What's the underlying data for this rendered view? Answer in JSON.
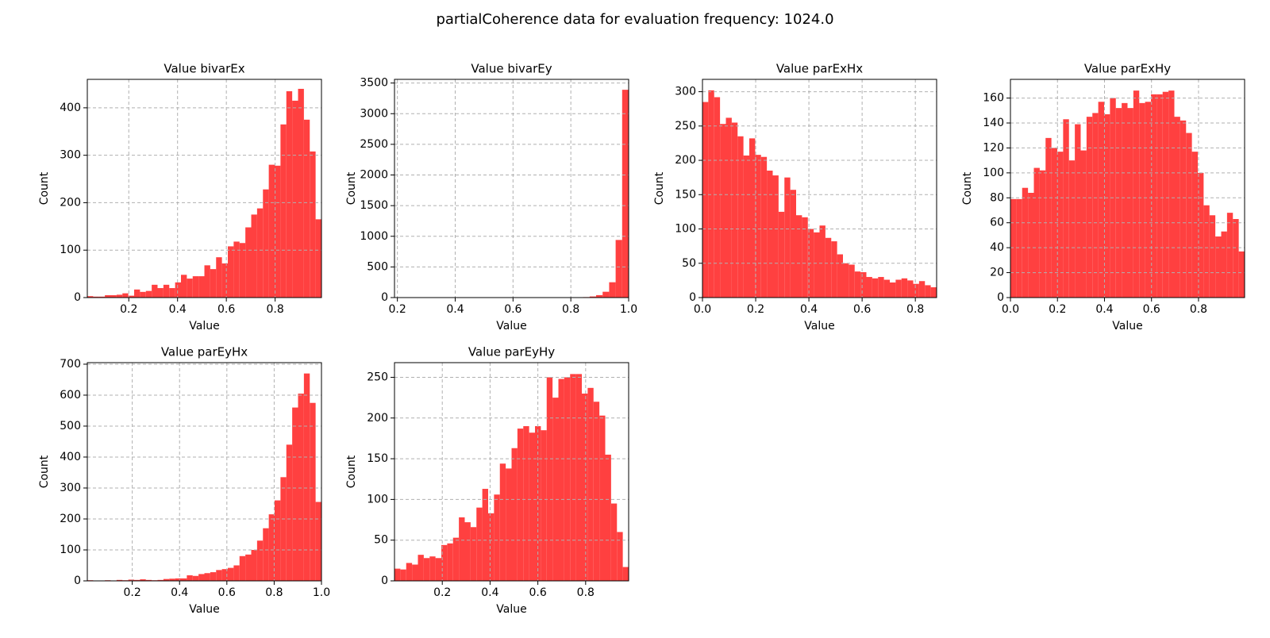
{
  "title": "partialCoherence data for evaluation frequency: 1024.0",
  "chart_data": [
    {
      "type": "histogram",
      "title": "Value bivarEx",
      "xlabel": "Value",
      "ylabel": "Count",
      "color": "#ff4040",
      "grid": true,
      "bins": [
        0.03,
        0.054,
        0.078,
        0.102,
        0.126,
        0.15,
        0.174,
        0.198,
        0.222,
        0.246,
        0.27,
        0.294,
        0.318,
        0.342,
        0.366,
        0.39,
        0.414,
        0.438,
        0.462,
        0.486,
        0.51,
        0.534,
        0.558,
        0.582,
        0.606,
        0.63,
        0.654,
        0.678,
        0.702,
        0.726,
        0.75,
        0.774,
        0.798,
        0.822,
        0.846,
        0.87,
        0.894,
        0.918,
        0.942,
        0.966,
        0.99
      ],
      "values": [
        3,
        2,
        2,
        5,
        5,
        6,
        9,
        4,
        17,
        12,
        14,
        27,
        20,
        27,
        20,
        32,
        48,
        40,
        45,
        45,
        68,
        60,
        85,
        72,
        108,
        118,
        115,
        148,
        175,
        188,
        228,
        280,
        278,
        365,
        435,
        415,
        440,
        375,
        308,
        165
      ],
      "xlim": [
        0.03,
        0.99
      ],
      "ylim": [
        0,
        460
      ],
      "xticks": [
        0.2,
        0.4,
        0.6,
        0.8
      ],
      "yticks": [
        0,
        100,
        200,
        300,
        400
      ]
    },
    {
      "type": "histogram",
      "title": "Value bivarEy",
      "xlabel": "Value",
      "ylabel": "Count",
      "color": "#ff4040",
      "grid": true,
      "bins": [
        0.19,
        0.2125,
        0.235,
        0.2575,
        0.28,
        0.3025,
        0.325,
        0.3475,
        0.37,
        0.3925,
        0.415,
        0.4375,
        0.46,
        0.4825,
        0.505,
        0.5275,
        0.55,
        0.5725,
        0.595,
        0.6175,
        0.64,
        0.6625,
        0.685,
        0.7075,
        0.73,
        0.7525,
        0.775,
        0.7975,
        0.82,
        0.8425,
        0.865,
        0.8875,
        0.91,
        0.9325,
        0.955,
        0.9775,
        1.0
      ],
      "values": [
        1,
        0,
        0,
        0,
        0,
        0,
        0,
        0,
        0,
        0,
        0,
        0,
        0,
        0,
        0,
        0,
        0,
        0,
        0,
        0,
        0,
        0,
        0,
        0,
        0,
        0,
        1,
        2,
        4,
        8,
        18,
        40,
        95,
        250,
        940,
        3390
      ],
      "xlim": [
        0.19,
        1.0
      ],
      "ylim": [
        0,
        3560
      ],
      "xticks": [
        0.2,
        0.4,
        0.6,
        0.8,
        {
          "value": 1,
          "label": "1.0"
        }
      ],
      "yticks": [
        0,
        500,
        1000,
        1500,
        2000,
        2500,
        3000,
        3500
      ]
    },
    {
      "type": "histogram",
      "title": "Value parExHx",
      "xlabel": "Value",
      "ylabel": "Count",
      "color": "#ff4040",
      "grid": true,
      "bins": [
        0,
        0.022,
        0.044,
        0.066,
        0.088,
        0.11,
        0.132,
        0.154,
        0.176,
        0.198,
        0.22,
        0.242,
        0.264,
        0.286,
        0.308,
        0.33,
        0.352,
        0.374,
        0.396,
        0.418,
        0.44,
        0.462,
        0.484,
        0.506,
        0.528,
        0.55,
        0.572,
        0.594,
        0.616,
        0.638,
        0.66,
        0.682,
        0.704,
        0.726,
        0.748,
        0.77,
        0.792,
        0.814,
        0.836,
        0.858,
        0.88
      ],
      "values": [
        285,
        302,
        292,
        253,
        262,
        255,
        235,
        207,
        232,
        208,
        205,
        185,
        178,
        125,
        175,
        157,
        120,
        117,
        100,
        95,
        105,
        87,
        82,
        63,
        50,
        48,
        38,
        37,
        30,
        28,
        30,
        26,
        22,
        26,
        28,
        25,
        20,
        24,
        18,
        15
      ],
      "xlim": [
        0,
        0.88
      ],
      "ylim": [
        0,
        318
      ],
      "xticks": [
        {
          "value": 0,
          "label": "0.0"
        },
        0.2,
        0.4,
        0.6,
        0.8
      ],
      "yticks": [
        0,
        50,
        100,
        150,
        200,
        250,
        300
      ]
    },
    {
      "type": "histogram",
      "title": "Value parExHy",
      "xlabel": "Value",
      "ylabel": "Count",
      "color": "#ff4040",
      "grid": true,
      "bins": [
        0,
        0.0249,
        0.0498,
        0.0747,
        0.0996,
        0.1245,
        0.1494,
        0.1743,
        0.1992,
        0.2241,
        0.249,
        0.2739,
        0.2988,
        0.3237,
        0.3486,
        0.3735,
        0.3984,
        0.4233,
        0.4482,
        0.4731,
        0.498,
        0.5229,
        0.5478,
        0.5727,
        0.5976,
        0.6225,
        0.6474,
        0.6723,
        0.6972,
        0.7221,
        0.747,
        0.7719,
        0.7968,
        0.8217,
        0.8466,
        0.8715,
        0.8964,
        0.9213,
        0.9462,
        0.9711,
        0.996
      ],
      "values": [
        79,
        79,
        88,
        84,
        104,
        102,
        128,
        120,
        117,
        143,
        110,
        139,
        118,
        145,
        148,
        157,
        147,
        160,
        152,
        156,
        152,
        166,
        156,
        157,
        163,
        163,
        165,
        166,
        145,
        142,
        132,
        117,
        100,
        74,
        66,
        49,
        53,
        68,
        63,
        37
      ],
      "xlim": [
        0,
        0.996
      ],
      "ylim": [
        0,
        175
      ],
      "xticks": [
        {
          "value": 0,
          "label": "0.0"
        },
        0.2,
        0.4,
        0.6,
        0.8
      ],
      "yticks": [
        0,
        20,
        40,
        60,
        80,
        100,
        120,
        140,
        160
      ]
    },
    {
      "type": "histogram",
      "title": "Value parEyHx",
      "xlabel": "Value",
      "ylabel": "Count",
      "color": "#ff4040",
      "grid": true,
      "bins": [
        0.01,
        0.03475,
        0.0595,
        0.08425,
        0.109,
        0.13375,
        0.1585,
        0.18325,
        0.208,
        0.23275,
        0.2575,
        0.28225,
        0.307,
        0.33175,
        0.3565,
        0.38125,
        0.406,
        0.43075,
        0.4555,
        0.48025,
        0.505,
        0.52975,
        0.5545,
        0.57925,
        0.604,
        0.62875,
        0.6535,
        0.67825,
        0.703,
        0.72775,
        0.7525,
        0.77725,
        0.802,
        0.82675,
        0.8515,
        0.87625,
        0.901,
        0.92575,
        0.9505,
        0.97525,
        1.0
      ],
      "values": [
        2,
        1,
        0,
        2,
        1,
        3,
        2,
        4,
        3,
        5,
        3,
        2,
        3,
        6,
        7,
        8,
        8,
        18,
        16,
        22,
        25,
        28,
        35,
        38,
        42,
        50,
        80,
        85,
        100,
        130,
        170,
        215,
        260,
        335,
        440,
        560,
        605,
        670,
        575,
        255
      ],
      "xlim": [
        0.01,
        1.0
      ],
      "ylim": [
        0,
        705
      ],
      "xticks": [
        0.2,
        0.4,
        0.6,
        0.8,
        {
          "value": 1,
          "label": "1.0"
        }
      ],
      "yticks": [
        0,
        100,
        200,
        300,
        400,
        500,
        600,
        700
      ]
    },
    {
      "type": "histogram",
      "title": "Value parEyHy",
      "xlabel": "Value",
      "ylabel": "Count",
      "color": "#ff4040",
      "grid": true,
      "bins": [
        0,
        0.0245,
        0.049,
        0.0735,
        0.098,
        0.1225,
        0.147,
        0.1715,
        0.196,
        0.2205,
        0.245,
        0.2695,
        0.294,
        0.3185,
        0.343,
        0.3675,
        0.392,
        0.4165,
        0.441,
        0.4655,
        0.49,
        0.5145,
        0.539,
        0.5635,
        0.588,
        0.6125,
        0.637,
        0.6615,
        0.686,
        0.7105,
        0.735,
        0.7595,
        0.784,
        0.8085,
        0.833,
        0.8575,
        0.882,
        0.9065,
        0.931,
        0.9555,
        0.98
      ],
      "values": [
        15,
        14,
        22,
        20,
        32,
        28,
        30,
        28,
        44,
        46,
        53,
        78,
        72,
        66,
        90,
        113,
        83,
        106,
        144,
        138,
        163,
        187,
        190,
        182,
        190,
        185,
        250,
        225,
        248,
        250,
        254,
        254,
        230,
        237,
        220,
        203,
        155,
        95,
        60,
        17
      ],
      "xlim": [
        0,
        0.98
      ],
      "ylim": [
        0,
        268
      ],
      "xticks": [
        0.2,
        0.4,
        0.6,
        0.8
      ],
      "yticks": [
        0,
        50,
        100,
        150,
        200,
        250
      ]
    }
  ]
}
